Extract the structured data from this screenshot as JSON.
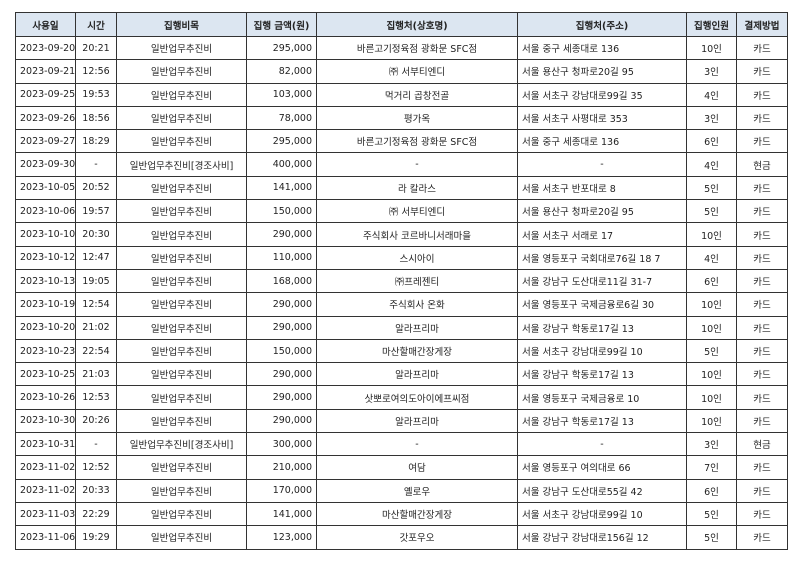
{
  "table": {
    "headers": [
      "사용일",
      "시간",
      "집행비목",
      "집행 금액(원)",
      "집행처(상호명)",
      "집행처(주소)",
      "집행인원",
      "결제방법"
    ],
    "rows": [
      [
        "2023-09-20",
        "20:21",
        "일반업무추진비",
        "295,000",
        "바른고기정육점 광화문 SFC점",
        "서울 중구 세종대로 136",
        "10인",
        "카드"
      ],
      [
        "2023-09-21",
        "12:56",
        "일반업무추진비",
        "82,000",
        "㈜ 서부티엔디",
        "서울 용산구 청파로20길 95",
        "3인",
        "카드"
      ],
      [
        "2023-09-25",
        "19:53",
        "일반업무추진비",
        "103,000",
        "먹거리 곱창전골",
        "서울 서초구 강남대로99길 35",
        "4인",
        "카드"
      ],
      [
        "2023-09-26",
        "18:56",
        "일반업무추진비",
        "78,000",
        "평가옥",
        "서울 서초구 사평대로 353",
        "3인",
        "카드"
      ],
      [
        "2023-09-27",
        "18:29",
        "일반업무추진비",
        "295,000",
        "바른고기정육점 광화문 SFC점",
        "서울 중구 세종대로 136",
        "6인",
        "카드"
      ],
      [
        "2023-09-30",
        "-",
        "일반업무추진비[경조사비]",
        "400,000",
        "-",
        "-",
        "4인",
        "현금"
      ],
      [
        "2023-10-05",
        "20:52",
        "일반업무추진비",
        "141,000",
        "라  칼라스",
        "서울 서초구 반포대로 8",
        "5인",
        "카드"
      ],
      [
        "2023-10-06",
        "19:57",
        "일반업무추진비",
        "150,000",
        "㈜ 서부티엔디",
        "서울 용산구 청파로20길 95",
        "5인",
        "카드"
      ],
      [
        "2023-10-10",
        "20:30",
        "일반업무추진비",
        "290,000",
        "주식회사 코르바니서래마을",
        "서울 서초구 서래로 17",
        "10인",
        "카드"
      ],
      [
        "2023-10-12",
        "12:47",
        "일반업무추진비",
        "110,000",
        "스시아이",
        "서울 영등포구 국회대로76길 18 7",
        "4인",
        "카드"
      ],
      [
        "2023-10-13",
        "19:05",
        "일반업무추진비",
        "168,000",
        "㈜프레젠티",
        "서울 강남구 도산대로11길 31-7",
        "6인",
        "카드"
      ],
      [
        "2023-10-19",
        "12:54",
        "일반업무추진비",
        "290,000",
        "주식회사 온화",
        "서울 영등포구 국제금융로6길 30",
        "10인",
        "카드"
      ],
      [
        "2023-10-20",
        "21:02",
        "일반업무추진비",
        "290,000",
        "알라프리마",
        "서울 강남구 학동로17길 13",
        "10인",
        "카드"
      ],
      [
        "2023-10-23",
        "22:54",
        "일반업무추진비",
        "150,000",
        "마산할매간장게장",
        "서울 서초구 강남대로99길 10",
        "5인",
        "카드"
      ],
      [
        "2023-10-25",
        "21:03",
        "일반업무추진비",
        "290,000",
        "알라프리마",
        "서울 강남구 학동로17길 13",
        "10인",
        "카드"
      ],
      [
        "2023-10-26",
        "12:53",
        "일반업무추진비",
        "290,000",
        "삿뽀로여의도아이에프씨점",
        "서울 영등포구 국제금융로 10",
        "10인",
        "카드"
      ],
      [
        "2023-10-30",
        "20:26",
        "일반업무추진비",
        "290,000",
        "알라프리마",
        "서울 강남구 학동로17길 13",
        "10인",
        "카드"
      ],
      [
        "2023-10-31",
        "-",
        "일반업무추진비[경조사비]",
        "300,000",
        "-",
        "-",
        "3인",
        "현금"
      ],
      [
        "2023-11-02",
        "12:52",
        "일반업무추진비",
        "210,000",
        "여담",
        "서울 영등포구 여의대로 66",
        "7인",
        "카드"
      ],
      [
        "2023-11-02",
        "20:33",
        "일반업무추진비",
        "170,000",
        "옐로우",
        "서울 강남구 도산대로55길 42",
        "6인",
        "카드"
      ],
      [
        "2023-11-03",
        "22:29",
        "일반업무추진비",
        "141,000",
        "마산할매간장게장",
        "서울 서초구 강남대로99길 10",
        "5인",
        "카드"
      ],
      [
        "2023-11-06",
        "19:29",
        "일반업무추진비",
        "123,000",
        "갓포우오",
        "서울 강남구 강남대로156길 12",
        "5인",
        "카드"
      ]
    ]
  },
  "colors": {
    "header_bg": "#dce6f1",
    "border": "#333333"
  }
}
